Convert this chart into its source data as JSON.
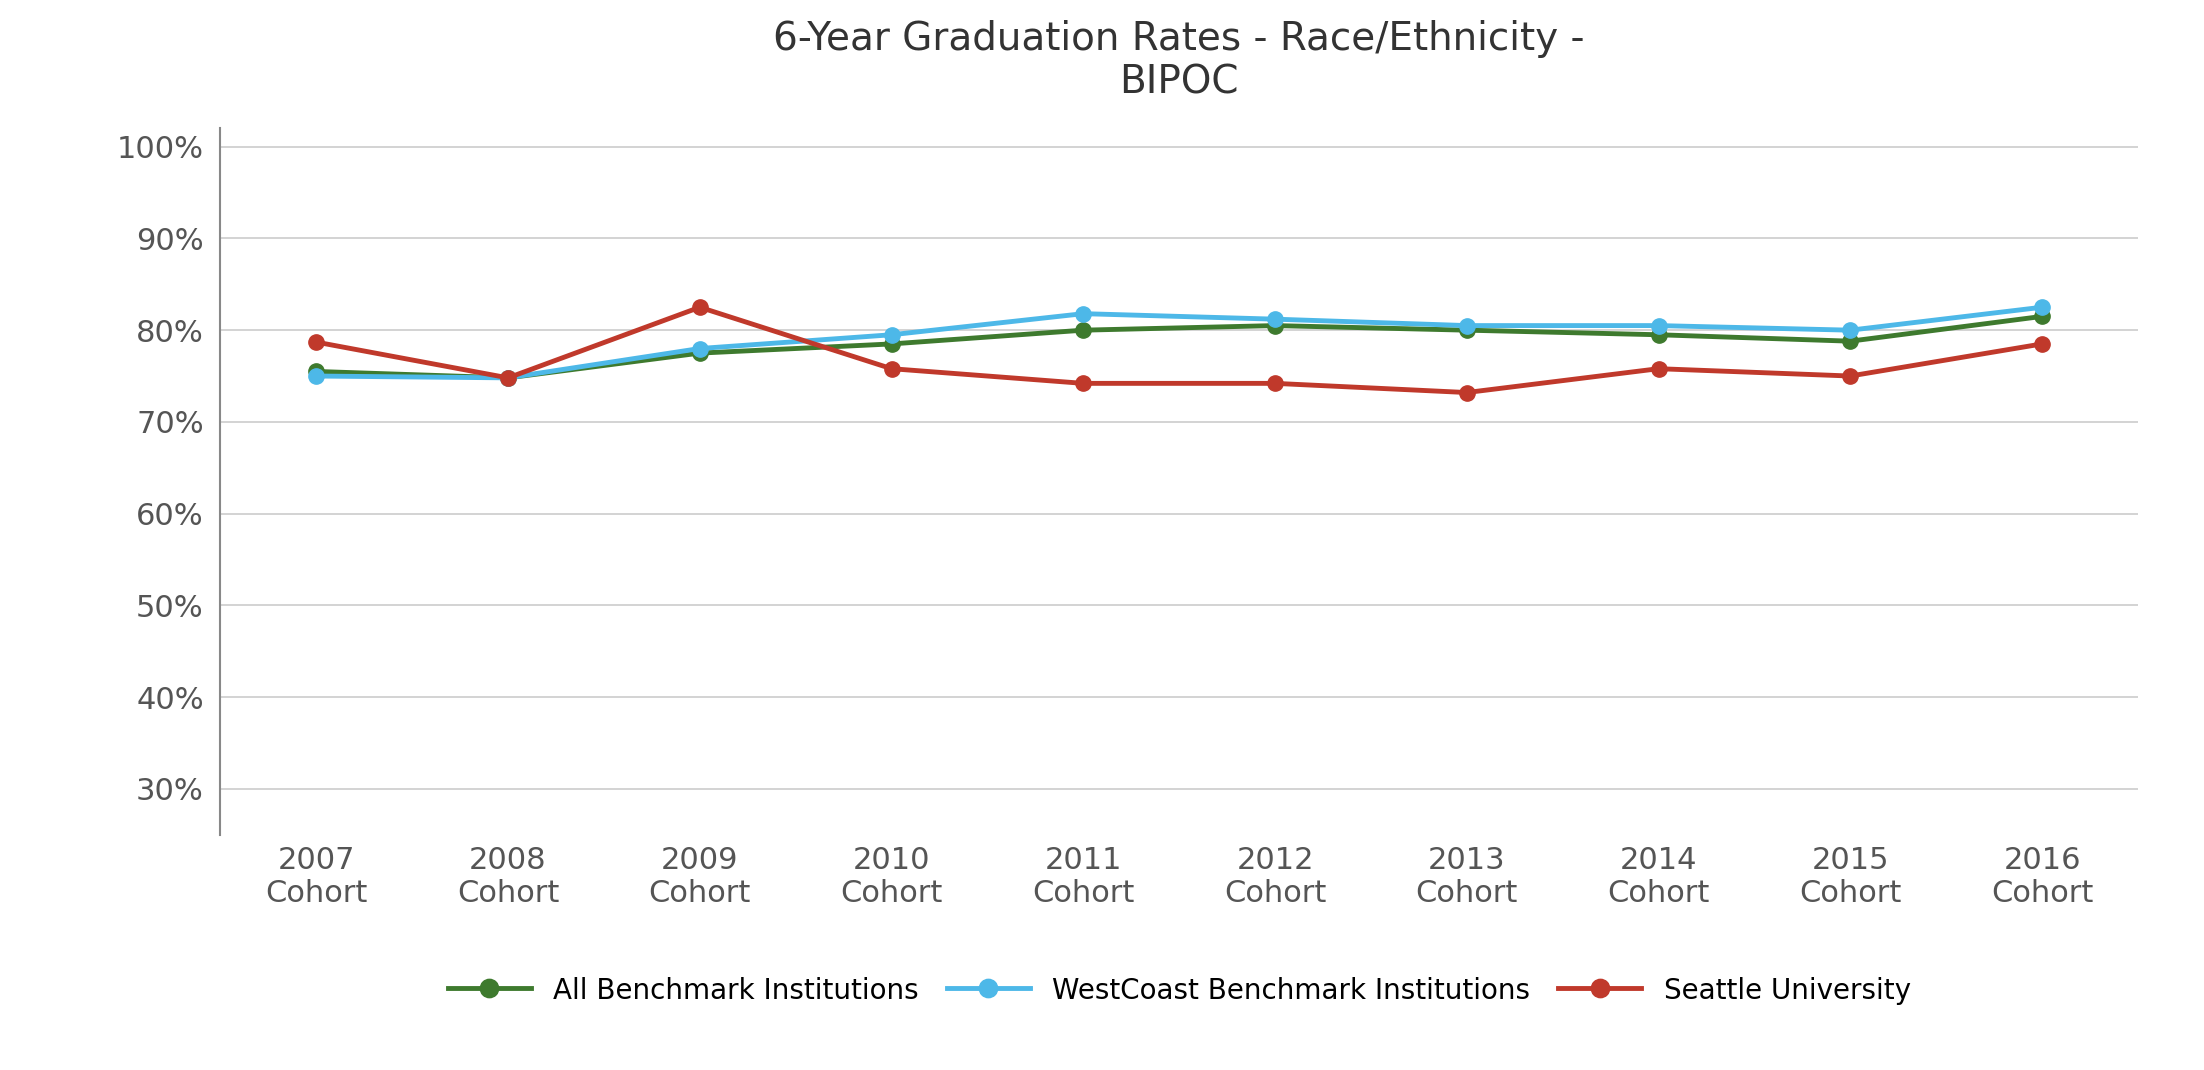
{
  "title": "6-Year Graduation Rates - Race/Ethnicity -\nBIPOC",
  "x_labels": [
    "2007\nCohort",
    "2008\nCohort",
    "2009\nCohort",
    "2010\nCohort",
    "2011\nCohort",
    "2012\nCohort",
    "2013\nCohort",
    "2014\nCohort",
    "2015\nCohort",
    "2016\nCohort"
  ],
  "x_values": [
    0,
    1,
    2,
    3,
    4,
    5,
    6,
    7,
    8,
    9
  ],
  "series": [
    {
      "label": "All Benchmark Institutions",
      "color": "#3e7a2e",
      "marker": "o",
      "values": [
        0.755,
        0.748,
        0.775,
        0.785,
        0.8,
        0.805,
        0.8,
        0.795,
        0.788,
        0.815
      ]
    },
    {
      "label": "WestCoast Benchmark Institutions",
      "color": "#4db8e8",
      "marker": "o",
      "values": [
        0.75,
        0.748,
        0.78,
        0.795,
        0.818,
        0.812,
        0.805,
        0.805,
        0.8,
        0.825
      ]
    },
    {
      "label": "Seattle University",
      "color": "#c0392b",
      "marker": "o",
      "values": [
        0.787,
        0.748,
        0.825,
        0.758,
        0.742,
        0.742,
        0.732,
        0.758,
        0.75,
        0.785
      ]
    }
  ],
  "ylim": [
    0.25,
    1.02
  ],
  "yticks": [
    1.0,
    0.9,
    0.8,
    0.7,
    0.6,
    0.5,
    0.4,
    0.3
  ],
  "background_color": "#ffffff",
  "plot_background_color": "#ffffff",
  "grid_color": "#cccccc",
  "left_spine_color": "#888888",
  "title_fontsize": 28,
  "tick_fontsize": 22,
  "legend_fontsize": 20,
  "line_width": 3.5,
  "marker_size": 11
}
